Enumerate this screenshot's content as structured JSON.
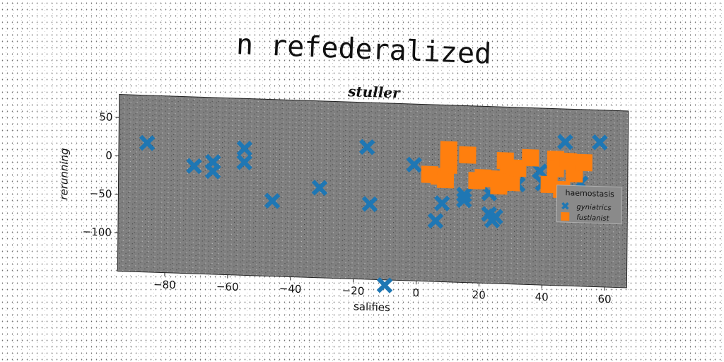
{
  "page_title": "n refederalized",
  "chart_data": {
    "type": "scatter",
    "title": "stuller",
    "xlabel": "salifies",
    "ylabel": "rerunning",
    "xlim": [
      -95,
      67
    ],
    "ylim": [
      -150,
      80
    ],
    "xticks": [
      -80,
      -60,
      -40,
      -20,
      0,
      20,
      40,
      60
    ],
    "yticks": [
      50,
      0,
      -50,
      -100
    ],
    "grid": false,
    "background": "#808080",
    "legend": {
      "title": "haemostasis",
      "placement": "right"
    },
    "series": [
      {
        "name": "gyniatrics",
        "marker": "x",
        "color": "#1f77b4",
        "points": [
          [
            -86,
            18
          ],
          [
            -71,
            -10
          ],
          [
            -65,
            -4
          ],
          [
            -65,
            -16
          ],
          [
            -55,
            15
          ],
          [
            -55,
            -3
          ],
          [
            -46,
            -52
          ],
          [
            -31,
            -33
          ],
          [
            -16,
            22
          ],
          [
            -15,
            -52
          ],
          [
            -10,
            -157
          ],
          [
            -1,
            1
          ],
          [
            6,
            -71
          ],
          [
            8,
            -48
          ],
          [
            15,
            -36
          ],
          [
            15,
            -43
          ],
          [
            23,
            -33
          ],
          [
            23,
            -60
          ],
          [
            24,
            -68
          ],
          [
            25,
            -63
          ],
          [
            32,
            -20
          ],
          [
            39,
            -2
          ],
          [
            40,
            -18
          ],
          [
            47,
            37
          ],
          [
            50,
            -5
          ],
          [
            51,
            -28
          ],
          [
            52,
            -16
          ],
          [
            53,
            -36
          ],
          [
            58,
            38
          ]
        ]
      },
      {
        "name": "fustianist",
        "marker": "s",
        "color": "#ff7f0e",
        "points": [
          [
            4,
            -11
          ],
          [
            7,
            -13
          ],
          [
            9,
            -17
          ],
          [
            10,
            22
          ],
          [
            10,
            2
          ],
          [
            10,
            10
          ],
          [
            16,
            16
          ],
          [
            19,
            -17
          ],
          [
            21,
            -13
          ],
          [
            24,
            -14
          ],
          [
            26,
            -23
          ],
          [
            28,
            10
          ],
          [
            29,
            -7
          ],
          [
            30,
            -18
          ],
          [
            32,
            1
          ],
          [
            36,
            15
          ],
          [
            42,
            -19
          ],
          [
            44,
            14
          ],
          [
            44,
            2
          ],
          [
            46,
            -25
          ],
          [
            48,
            12
          ],
          [
            50,
            4
          ],
          [
            50,
            -4
          ],
          [
            53,
            11
          ]
        ]
      }
    ]
  }
}
